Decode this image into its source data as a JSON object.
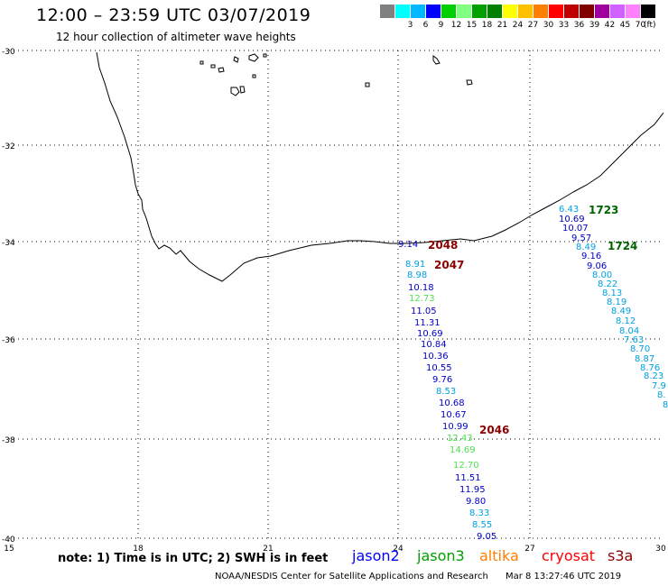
{
  "header": {
    "title": "12:00 – 23:59 UTC 03/07/2019",
    "subtitle": "12 hour collection of altimeter wave heights"
  },
  "color_scale": {
    "unit": "(ft)",
    "colors": [
      "#808080",
      "#00ffff",
      "#00b8ff",
      "#0000ff",
      "#00d000",
      "#80ff80",
      "#00a000",
      "#008000",
      "#ffff00",
      "#ffc000",
      "#ff8000",
      "#ff0000",
      "#c00000",
      "#800000",
      "#a000a0",
      "#d060ff",
      "#ff80ff",
      "#000000"
    ],
    "labels": [
      "",
      "3",
      "6",
      "9",
      "12",
      "15",
      "18",
      "21",
      "24",
      "27",
      "30",
      "33",
      "36",
      "39",
      "42",
      "45",
      "70",
      ""
    ]
  },
  "axes": {
    "lat_labels": [
      "-30",
      "-32",
      "-34",
      "-36",
      "-38",
      "-40"
    ],
    "lon_labels": [
      "15",
      "18",
      "21",
      "24",
      "27",
      "30"
    ]
  },
  "map_data": {
    "tracks": [
      {
        "id": "1723",
        "color": "#006400"
      },
      {
        "id": "1724",
        "color": "#006400"
      },
      {
        "id": "2048",
        "color": "#8b0000"
      },
      {
        "id": "2047",
        "color": "#8b0000"
      },
      {
        "id": "2046",
        "color": "#8b0000"
      }
    ],
    "observations": [
      {
        "v": "9.14",
        "c": "#0000c8"
      },
      {
        "v": "8.91",
        "c": "#00a0e0"
      },
      {
        "v": "8.98",
        "c": "#00a0e0"
      },
      {
        "v": "10.18",
        "c": "#0000c8"
      },
      {
        "v": "12.73",
        "c": "#50e050"
      },
      {
        "v": "11.05",
        "c": "#0000c8"
      },
      {
        "v": "11.31",
        "c": "#0000c8"
      },
      {
        "v": "10.69",
        "c": "#0000c8"
      },
      {
        "v": "10.84",
        "c": "#0000c8"
      },
      {
        "v": "10.36",
        "c": "#0000c8"
      },
      {
        "v": "10.55",
        "c": "#0000c8"
      },
      {
        "v": "9.76",
        "c": "#0000c8"
      },
      {
        "v": "8.53",
        "c": "#00a0e0"
      },
      {
        "v": "10.68",
        "c": "#0000c8"
      },
      {
        "v": "10.67",
        "c": "#0000c8"
      },
      {
        "v": "10.99",
        "c": "#0000c8"
      },
      {
        "v": "12.43",
        "c": "#50e050"
      },
      {
        "v": "14.69",
        "c": "#50e050"
      },
      {
        "v": "12.70",
        "c": "#50e050"
      },
      {
        "v": "11.51",
        "c": "#0000c8"
      },
      {
        "v": "11.95",
        "c": "#0000c8"
      },
      {
        "v": "9.80",
        "c": "#0000c8"
      },
      {
        "v": "8.33",
        "c": "#00a0e0"
      },
      {
        "v": "8.55",
        "c": "#00a0e0"
      },
      {
        "v": "9.05",
        "c": "#0000c8"
      },
      {
        "v": "6.43",
        "c": "#00a0e0"
      },
      {
        "v": "10.69",
        "c": "#0000c8"
      },
      {
        "v": "10.07",
        "c": "#0000c8"
      },
      {
        "v": "9.57",
        "c": "#0000c8"
      },
      {
        "v": "8.49",
        "c": "#00a0e0"
      },
      {
        "v": "9.16",
        "c": "#0000c8"
      },
      {
        "v": "9.06",
        "c": "#0000c8"
      },
      {
        "v": "8.00",
        "c": "#00a0e0"
      },
      {
        "v": "8.22",
        "c": "#00a0e0"
      },
      {
        "v": "8.13",
        "c": "#00a0e0"
      },
      {
        "v": "8.19",
        "c": "#00a0e0"
      },
      {
        "v": "8.49",
        "c": "#00a0e0"
      },
      {
        "v": "8.12",
        "c": "#00a0e0"
      },
      {
        "v": "8.04",
        "c": "#00a0e0"
      },
      {
        "v": "7.63",
        "c": "#00a0e0"
      },
      {
        "v": "8.70",
        "c": "#00a0e0"
      },
      {
        "v": "8.87",
        "c": "#00a0e0"
      },
      {
        "v": "8.76",
        "c": "#00a0e0"
      },
      {
        "v": "8.23",
        "c": "#00a0e0"
      },
      {
        "v": "7.9",
        "c": "#00a0e0"
      },
      {
        "v": "8.",
        "c": "#00a0e0"
      },
      {
        "v": "8.",
        "c": "#00a0e0"
      }
    ]
  },
  "footer": {
    "note": "note: 1) Time is in UTC; 2) SWH is in feet",
    "satellites": [
      {
        "name": "jason2",
        "color": "#0000ff"
      },
      {
        "name": "jason3",
        "color": "#00a000"
      },
      {
        "name": "altika",
        "color": "#ff8000"
      },
      {
        "name": "cryosat",
        "color": "#ff0000"
      },
      {
        "name": "s3a",
        "color": "#8b0000"
      }
    ],
    "credit": "NOAA/NESDIS Center for Satellite Applications and Research",
    "timestamp": "Mar  8 13:27:46 UTC 2019"
  }
}
